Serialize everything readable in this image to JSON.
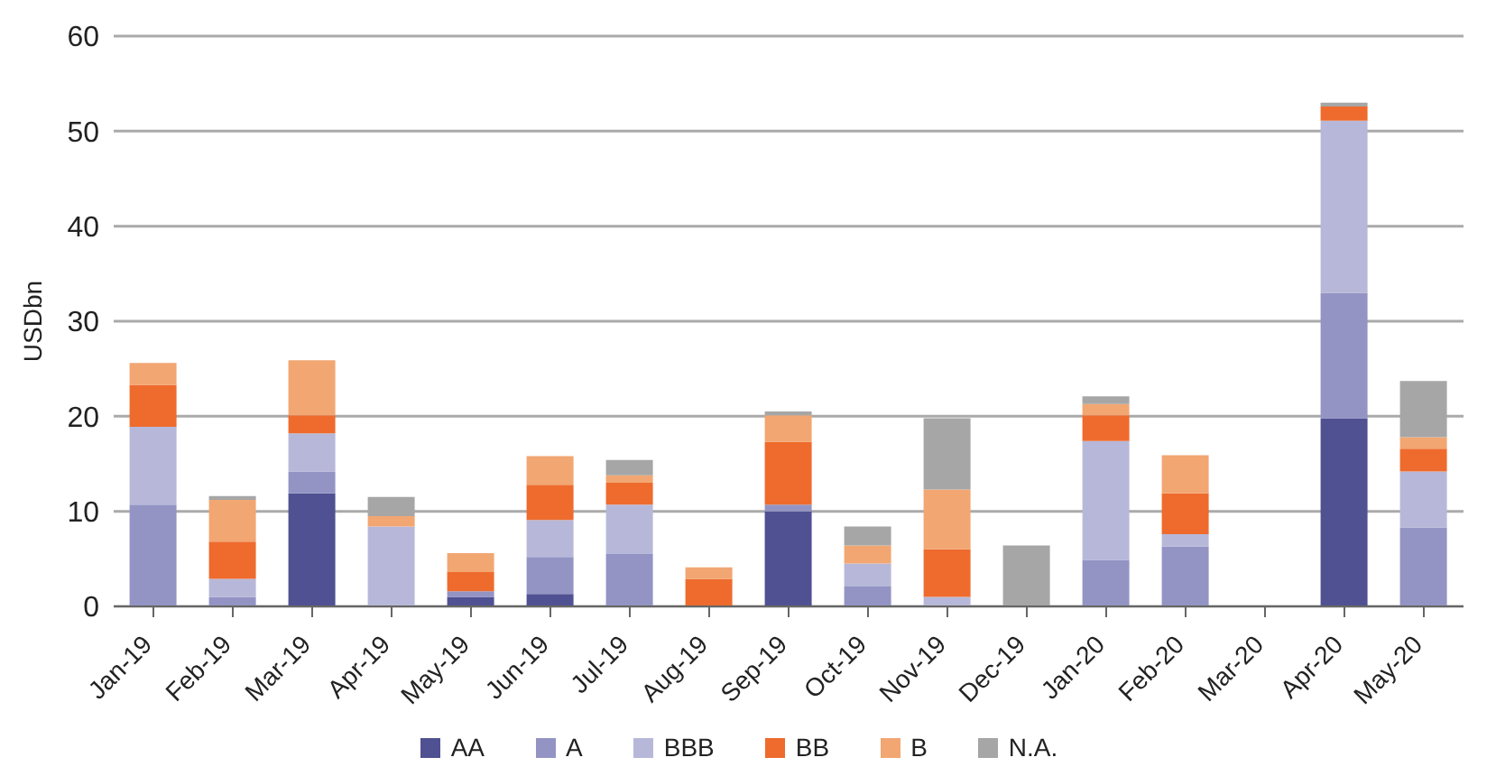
{
  "chart_data": {
    "type": "bar",
    "stacked": true,
    "ylabel": "USDbn",
    "categories": [
      "Jan-19",
      "Feb-19",
      "Mar-19",
      "Apr-19",
      "May-19",
      "Jun-19",
      "Jul-19",
      "Aug-19",
      "Sep-19",
      "Oct-19",
      "Nov-19",
      "Dec-19",
      "Jan-20",
      "Feb-20",
      "Mar-20",
      "Apr-20",
      "May-20"
    ],
    "series": [
      {
        "name": "AA",
        "color": "#4f5192",
        "values": [
          0,
          0,
          11.9,
          0,
          1.0,
          1.3,
          0,
          0,
          10.0,
          0,
          0,
          0,
          0,
          0,
          0,
          19.8,
          0
        ]
      },
      {
        "name": "A",
        "color": "#9394c4",
        "values": [
          10.7,
          1.0,
          2.3,
          0,
          0.6,
          3.9,
          5.5,
          0,
          0.7,
          2.1,
          0,
          0,
          4.9,
          6.3,
          0,
          13.2,
          8.3
        ]
      },
      {
        "name": "BBB",
        "color": "#b7b8d9",
        "values": [
          8.2,
          1.9,
          4.0,
          8.4,
          0,
          3.9,
          5.2,
          0,
          0,
          2.4,
          1.0,
          0,
          12.5,
          1.3,
          0,
          18.1,
          5.9
        ]
      },
      {
        "name": "BB",
        "color": "#ee6b2d",
        "values": [
          4.4,
          3.9,
          1.9,
          0,
          2.0,
          3.7,
          2.3,
          2.9,
          6.6,
          0,
          5.0,
          0,
          2.7,
          4.3,
          0,
          1.5,
          2.4
        ]
      },
      {
        "name": "B",
        "color": "#f2a672",
        "values": [
          2.3,
          4.4,
          5.8,
          1.1,
          2.0,
          3.0,
          0.8,
          1.2,
          2.8,
          1.9,
          6.3,
          0,
          1.2,
          4.0,
          0,
          0,
          1.2
        ]
      },
      {
        "name": "N.A.",
        "color": "#a6a6a6",
        "values": [
          0,
          0.4,
          0,
          2.0,
          0,
          0,
          1.6,
          0,
          0.4,
          2.0,
          7.5,
          6.4,
          0.8,
          0,
          0,
          0.4,
          5.9
        ]
      }
    ],
    "ylim": [
      0,
      60
    ],
    "yticks": [
      0,
      10,
      20,
      30,
      40,
      50,
      60
    ],
    "grid": "y",
    "legend": "bottom"
  }
}
